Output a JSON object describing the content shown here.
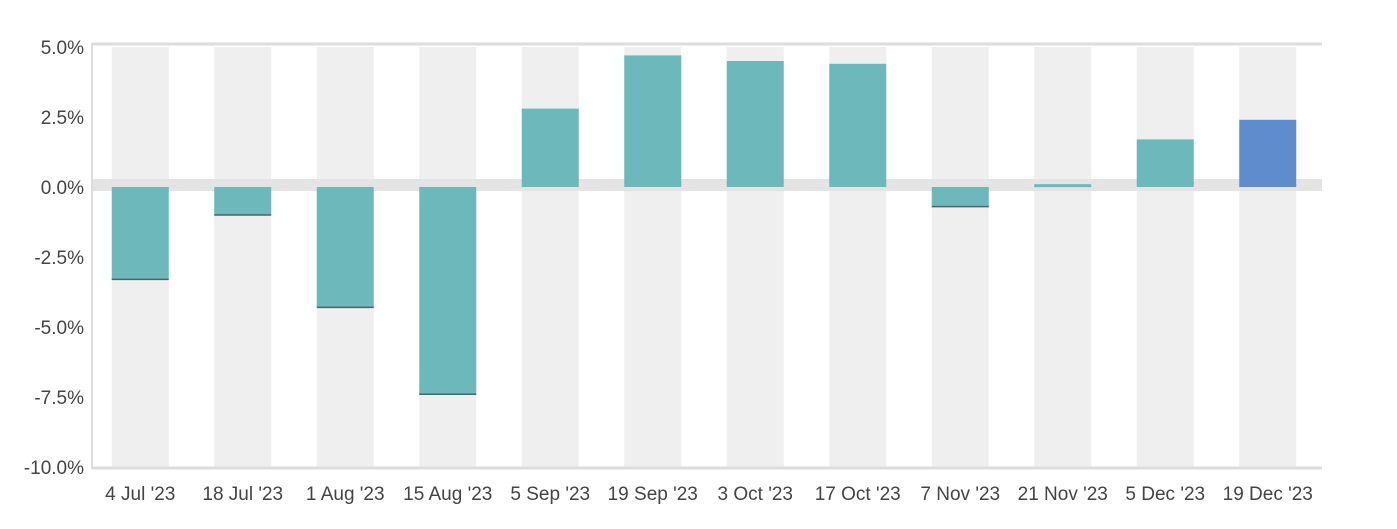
{
  "chart_data": {
    "type": "bar",
    "title": "",
    "xlabel": "",
    "ylabel": "",
    "categories": [
      "4 Jul '23",
      "18 Jul '23",
      "1 Aug '23",
      "15 Aug '23",
      "5 Sep '23",
      "19 Sep '23",
      "3 Oct '23",
      "17 Oct '23",
      "7 Nov '23",
      "21 Nov '23",
      "5 Dec '23",
      "19 Dec '23"
    ],
    "values": [
      -3.3,
      -1.0,
      -4.3,
      -7.4,
      2.8,
      4.7,
      4.5,
      4.4,
      -0.7,
      0.1,
      1.7,
      2.4
    ],
    "ylim": [
      -10,
      5
    ],
    "yticks": [
      5.0,
      2.5,
      0.0,
      -2.5,
      -5.0,
      -7.5,
      -10.0
    ],
    "ytick_labels": [
      "5.0%",
      "2.5%",
      "0.0%",
      "-2.5%",
      "-5.0%",
      "-7.5%",
      "-10.0%"
    ],
    "grid": false,
    "legend": "none",
    "colors": {
      "bar": "#6db8bb",
      "bar_highlight": "#5f8ccd",
      "band": "#efefef",
      "zero_band": "#e4e4e4",
      "axis": "#dddddd",
      "text": "#444444"
    },
    "highlight_index": 11
  }
}
